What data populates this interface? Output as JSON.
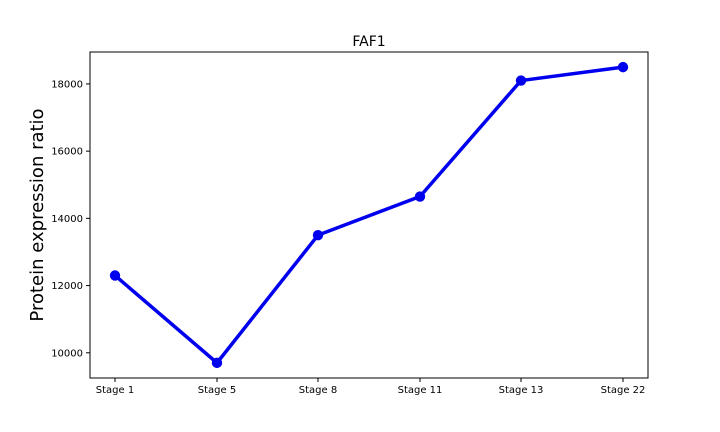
{
  "chart_data": {
    "type": "line",
    "title": "FAF1",
    "xlabel": "",
    "ylabel": "Protein expression ratio",
    "categories": [
      "Stage 1",
      "Stage 5",
      "Stage 8",
      "Stage 11",
      "Stage 13",
      "Stage 22"
    ],
    "series": [
      {
        "values": [
          12300,
          9700,
          13500,
          14650,
          18100,
          18500
        ],
        "color": "#0000ee",
        "marker": "circle"
      }
    ],
    "ylim": [
      9250,
      18950
    ],
    "yticks": [
      10000,
      12000,
      14000,
      16000,
      18000
    ],
    "yticks_labels": [
      "10000",
      "12000",
      "14000",
      "16000",
      "18000"
    ],
    "grid": false,
    "legend": "none"
  }
}
